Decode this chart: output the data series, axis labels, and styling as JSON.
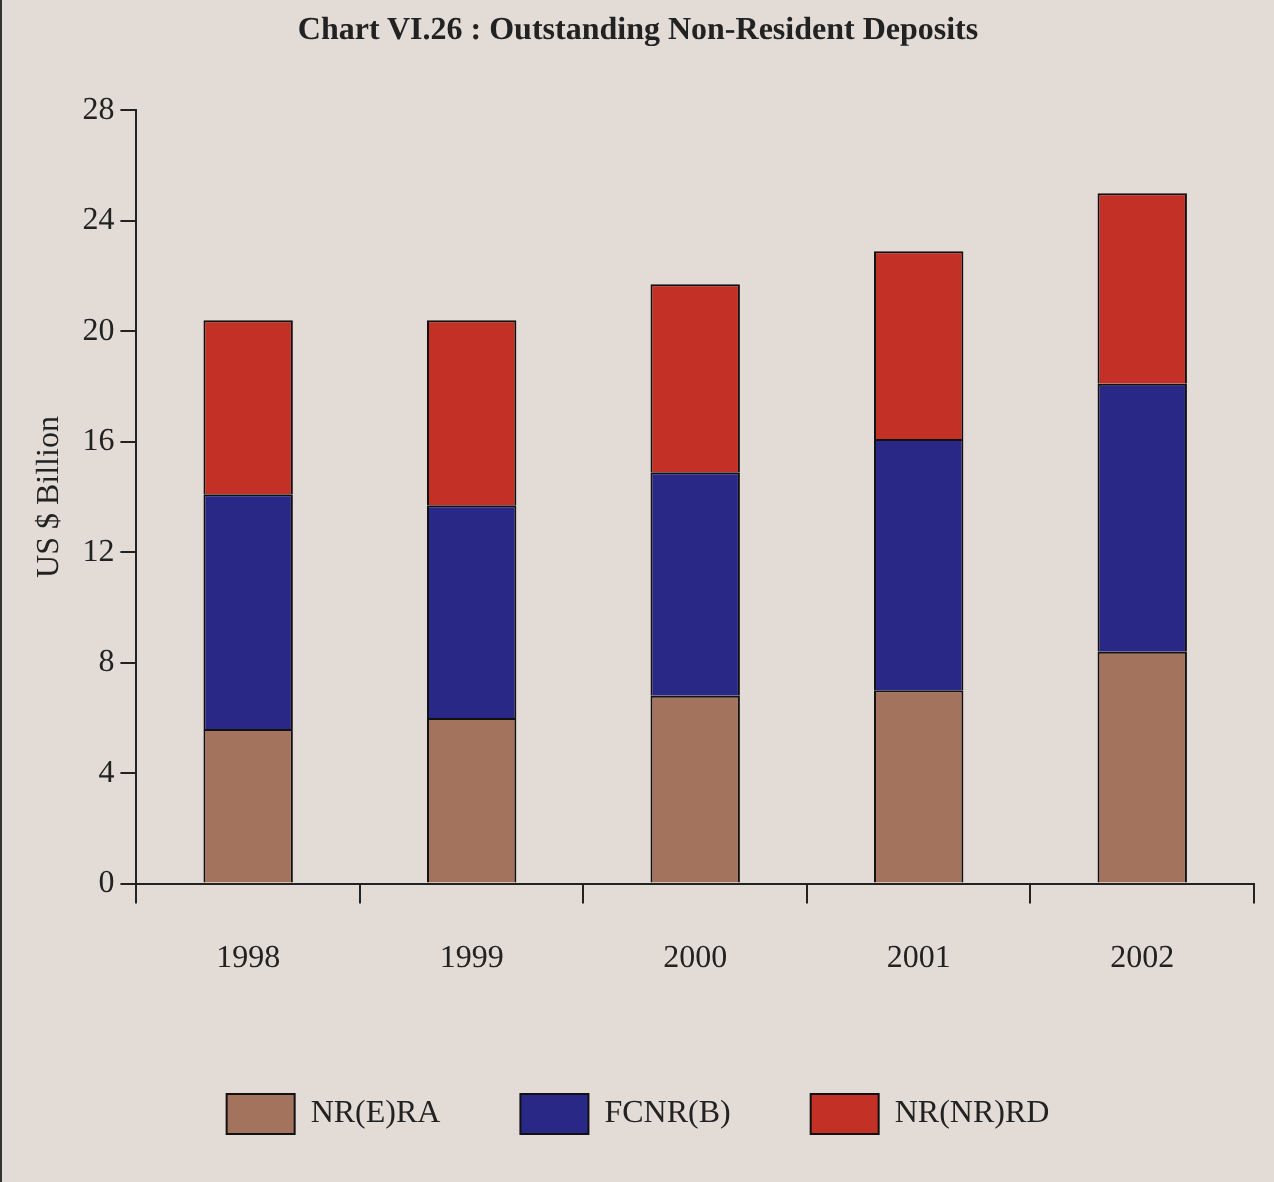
{
  "chart_data": {
    "type": "bar",
    "title": "Chart VI.26 : Outstanding Non-Resident Deposits",
    "ylabel": "US $ Billion",
    "categories": [
      "1998",
      "1999",
      "2000",
      "2001",
      "2002"
    ],
    "stacked": true,
    "series": [
      {
        "name": "NR(E)RA",
        "color": "#a4735e",
        "values": [
          5.6,
          6.0,
          6.8,
          7.0,
          8.4
        ]
      },
      {
        "name": "FCNR(B)",
        "color": "#2a2886",
        "values": [
          8.5,
          7.7,
          8.1,
          9.1,
          9.7
        ]
      },
      {
        "name": "NR(NR)RD",
        "color": "#c33026",
        "values": [
          6.3,
          6.7,
          6.8,
          6.8,
          6.9
        ]
      }
    ],
    "ylim": [
      0,
      28
    ],
    "yticks": [
      0,
      4,
      8,
      12,
      16,
      20,
      24,
      28
    ],
    "grid": false,
    "legend": "bottom"
  }
}
